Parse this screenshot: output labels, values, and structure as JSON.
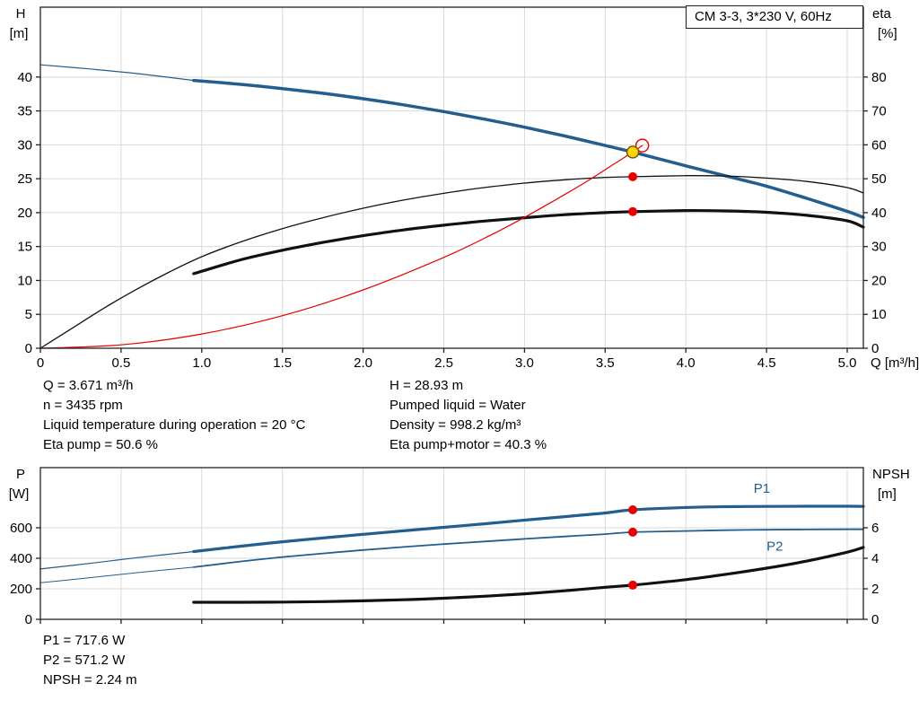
{
  "title_box": "CM 3-3, 3*230 V, 60Hz",
  "colors": {
    "blue": "#235e8e",
    "black": "#111111",
    "red": "#e60000",
    "yellow": "#ffd400",
    "grid": "#d9d9d9",
    "frame": "#222222"
  },
  "chart_data": [
    {
      "type": "line",
      "title": "CM 3-3, 3*230 V, 60Hz",
      "x": {
        "label": "Q [m³/h]",
        "lim": [
          0,
          5.1
        ],
        "ticks": [
          0,
          0.5,
          1,
          1.5,
          2,
          2.5,
          3,
          3.5,
          4,
          4.5,
          5
        ],
        "tick_labels": [
          "0",
          "0.5",
          "1.0",
          "1.5",
          "2.0",
          "2.5",
          "3.0",
          "3.5",
          "4.0",
          "4.5",
          "5.0"
        ]
      },
      "y_left": {
        "label": "H",
        "unit": "[m]",
        "lim": [
          0,
          50.3
        ],
        "ticks": [
          0,
          5,
          10,
          15,
          20,
          25,
          30,
          35,
          40
        ]
      },
      "y_right": {
        "label": "eta",
        "unit": "[%]",
        "lim": [
          0,
          100.6
        ],
        "ticks": [
          0,
          10,
          20,
          30,
          40,
          50,
          60,
          70,
          80
        ]
      },
      "series": [
        {
          "name": "qh-lead",
          "axis": "left",
          "color": "blue",
          "width": 1.2,
          "points": [
            [
              0,
              41.8
            ],
            [
              0.3,
              41.2
            ],
            [
              0.6,
              40.5
            ],
            [
              0.95,
              39.5
            ]
          ]
        },
        {
          "name": "qh",
          "axis": "left",
          "color": "blue",
          "width": 3.5,
          "points": [
            [
              0.95,
              39.5
            ],
            [
              1.25,
              38.9
            ],
            [
              1.5,
              38.3
            ],
            [
              1.75,
              37.6
            ],
            [
              2,
              36.8
            ],
            [
              2.25,
              35.9
            ],
            [
              2.5,
              34.9
            ],
            [
              2.75,
              33.8
            ],
            [
              3,
              32.6
            ],
            [
              3.25,
              31.3
            ],
            [
              3.5,
              29.9
            ],
            [
              3.671,
              28.93
            ],
            [
              4,
              26.9
            ],
            [
              4.25,
              25.4
            ],
            [
              4.5,
              23.9
            ],
            [
              4.75,
              22.1
            ],
            [
              5,
              20.2
            ],
            [
              5.1,
              19.3
            ]
          ]
        },
        {
          "name": "eta-pump",
          "axis": "right",
          "color": "black",
          "width": 1.3,
          "points": [
            [
              0,
              0
            ],
            [
              0.2,
              6
            ],
            [
              0.4,
              12
            ],
            [
              0.6,
              17.5
            ],
            [
              0.8,
              22.5
            ],
            [
              1,
              27
            ],
            [
              1.25,
              31.5
            ],
            [
              1.5,
              35.3
            ],
            [
              1.75,
              38.5
            ],
            [
              2,
              41.3
            ],
            [
              2.25,
              43.7
            ],
            [
              2.5,
              45.7
            ],
            [
              2.75,
              47.4
            ],
            [
              3,
              48.7
            ],
            [
              3.25,
              49.7
            ],
            [
              3.5,
              50.4
            ],
            [
              3.671,
              50.6
            ],
            [
              4,
              50.9
            ],
            [
              4.25,
              50.8
            ],
            [
              4.5,
              50.2
            ],
            [
              4.75,
              49.2
            ],
            [
              5,
              47.4
            ],
            [
              5.1,
              45.8
            ]
          ]
        },
        {
          "name": "eta-pump-motor",
          "axis": "right",
          "color": "black",
          "width": 3.2,
          "points": [
            [
              0.95,
              22
            ],
            [
              1.25,
              26.2
            ],
            [
              1.5,
              28.9
            ],
            [
              1.75,
              31.2
            ],
            [
              2,
              33.2
            ],
            [
              2.25,
              34.9
            ],
            [
              2.5,
              36.3
            ],
            [
              2.75,
              37.5
            ],
            [
              3,
              38.5
            ],
            [
              3.25,
              39.4
            ],
            [
              3.5,
              40
            ],
            [
              3.671,
              40.3
            ],
            [
              4,
              40.6
            ],
            [
              4.25,
              40.5
            ],
            [
              4.5,
              40.1
            ],
            [
              4.75,
              39.2
            ],
            [
              5,
              37.6
            ],
            [
              5.1,
              35.7
            ]
          ]
        },
        {
          "name": "system-curve",
          "axis": "left",
          "color": "red",
          "width": 1.2,
          "points": [
            [
              0,
              0
            ],
            [
              0.5,
              0.5
            ],
            [
              1,
              2.1
            ],
            [
              1.5,
              4.8
            ],
            [
              2,
              8.6
            ],
            [
              2.5,
              13.4
            ],
            [
              2.8,
              16.8
            ],
            [
              3,
              19.3
            ],
            [
              3.2,
              22
            ],
            [
              3.4,
              24.8
            ],
            [
              3.55,
              27.1
            ],
            [
              3.671,
              28.93
            ],
            [
              3.73,
              29.9
            ]
          ]
        }
      ],
      "markers": [
        {
          "style": "open-circle",
          "axis": "left",
          "x": 3.73,
          "y": 29.9
        },
        {
          "style": "duty-point",
          "axis": "left",
          "x": 3.671,
          "y": 28.93
        },
        {
          "style": "dot",
          "axis": "right",
          "x": 3.671,
          "y": 50.6
        },
        {
          "style": "dot",
          "axis": "right",
          "x": 3.671,
          "y": 40.3
        }
      ],
      "annotations": []
    },
    {
      "type": "line",
      "x": {
        "label": "",
        "lim": [
          0,
          5.1
        ],
        "ticks": [
          0,
          0.5,
          1,
          1.5,
          2,
          2.5,
          3,
          3.5,
          4,
          4.5,
          5
        ]
      },
      "y_left": {
        "label": "P",
        "unit": "[W]",
        "lim": [
          0,
          994
        ],
        "ticks": [
          0,
          200,
          400,
          600
        ]
      },
      "y_right": {
        "label": "NPSH",
        "unit": "[m]",
        "lim": [
          0,
          9.94
        ],
        "ticks": [
          0,
          2,
          4,
          6
        ]
      },
      "series": [
        {
          "name": "p1-lead",
          "axis": "left",
          "color": "blue",
          "width": 1.2,
          "points": [
            [
              0,
              330
            ],
            [
              0.3,
              366
            ],
            [
              0.6,
              404
            ],
            [
              0.95,
              444
            ]
          ]
        },
        {
          "name": "p1",
          "axis": "left",
          "color": "blue",
          "width": 3.2,
          "points": [
            [
              0.95,
              444
            ],
            [
              1.25,
              480
            ],
            [
              1.5,
              508
            ],
            [
              1.75,
              533
            ],
            [
              2,
              557
            ],
            [
              2.25,
              580
            ],
            [
              2.5,
              603
            ],
            [
              2.75,
              626
            ],
            [
              3,
              650
            ],
            [
              3.25,
              673
            ],
            [
              3.5,
              697
            ],
            [
              3.671,
              717.6
            ],
            [
              4,
              733
            ],
            [
              4.25,
              738
            ],
            [
              4.5,
              740
            ],
            [
              4.75,
              741
            ],
            [
              5,
              741
            ],
            [
              5.1,
              740
            ]
          ]
        },
        {
          "name": "p2-lead",
          "axis": "left",
          "color": "blue",
          "width": 1,
          "points": [
            [
              0,
              240
            ],
            [
              0.3,
              272
            ],
            [
              0.6,
              306
            ],
            [
              0.95,
              342
            ]
          ]
        },
        {
          "name": "p2",
          "axis": "left",
          "color": "blue",
          "width": 1.8,
          "points": [
            [
              0.95,
              342
            ],
            [
              1.25,
              380
            ],
            [
              1.5,
              408
            ],
            [
              1.75,
              432
            ],
            [
              2,
              454
            ],
            [
              2.25,
              474
            ],
            [
              2.5,
              493
            ],
            [
              2.75,
              510
            ],
            [
              3,
              527
            ],
            [
              3.25,
              543
            ],
            [
              3.5,
              558
            ],
            [
              3.671,
              571.2
            ],
            [
              4,
              579
            ],
            [
              4.25,
              584
            ],
            [
              4.5,
              587
            ],
            [
              4.75,
              589
            ],
            [
              5,
              590
            ],
            [
              5.1,
              590
            ]
          ]
        },
        {
          "name": "npsh",
          "axis": "right",
          "color": "black",
          "width": 3.2,
          "points": [
            [
              0.95,
              1.12
            ],
            [
              1.25,
              1.12
            ],
            [
              1.5,
              1.13
            ],
            [
              1.75,
              1.16
            ],
            [
              2,
              1.21
            ],
            [
              2.25,
              1.28
            ],
            [
              2.5,
              1.38
            ],
            [
              2.75,
              1.51
            ],
            [
              3,
              1.67
            ],
            [
              3.25,
              1.87
            ],
            [
              3.5,
              2.1
            ],
            [
              3.671,
              2.24
            ],
            [
              4,
              2.6
            ],
            [
              4.25,
              2.95
            ],
            [
              4.5,
              3.35
            ],
            [
              4.75,
              3.82
            ],
            [
              5,
              4.4
            ],
            [
              5.1,
              4.72
            ]
          ]
        }
      ],
      "markers": [
        {
          "style": "dot",
          "axis": "left",
          "x": 3.671,
          "y": 717.6
        },
        {
          "style": "dot",
          "axis": "left",
          "x": 3.671,
          "y": 571.2
        },
        {
          "style": "dot",
          "axis": "right",
          "x": 3.671,
          "y": 2.24
        }
      ],
      "annotations": [
        {
          "text": "P1",
          "x": 4.42,
          "y": 830,
          "axis": "left",
          "color": "blue"
        },
        {
          "text": "P2",
          "x": 4.5,
          "y": 450,
          "axis": "left",
          "color": "blue"
        }
      ]
    }
  ],
  "info_top_left": [
    "Q = 3.671 m³/h",
    "n = 3435 rpm",
    "Liquid temperature during operation = 20 °C",
    "Eta pump = 50.6 %"
  ],
  "info_top_right": [
    "H = 28.93 m",
    "Pumped liquid = Water",
    "Density = 998.2 kg/m³",
    "Eta pump+motor = 40.3 %"
  ],
  "info_bottom": [
    "P1 = 717.6 W",
    "P2 = 571.2 W",
    "NPSH = 2.24 m"
  ]
}
